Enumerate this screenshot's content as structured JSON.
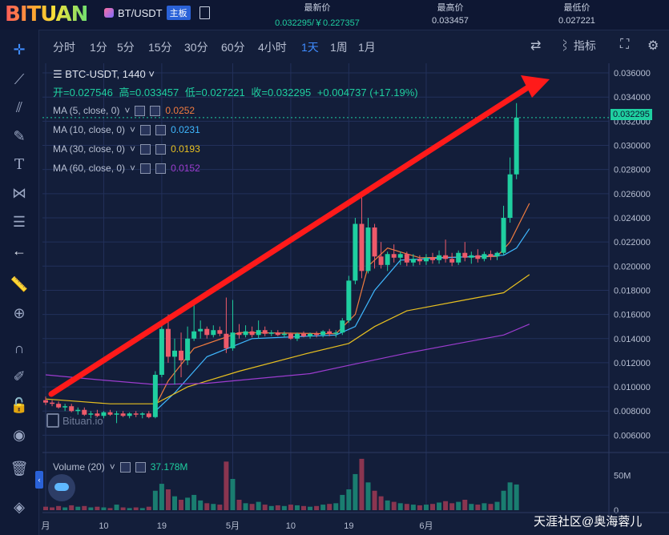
{
  "header": {
    "logo": "BITUAN",
    "pair": "BT/USDT",
    "board_badge": "主板",
    "stats": [
      {
        "label": "最新价",
        "value": "0.032295/￥0.227357",
        "color": "green"
      },
      {
        "label": "最高价",
        "value": "0.033457",
        "color": "plain"
      },
      {
        "label": "最低价",
        "value": "0.027221",
        "color": "plain"
      }
    ]
  },
  "toolbar": {
    "timeframes": [
      "分时",
      "1分",
      "5分",
      "15分",
      "30分",
      "60分",
      "4小时",
      "1天",
      "1周",
      "1月"
    ],
    "active_timeframe": "1天",
    "indicator_label": "指标"
  },
  "legend": {
    "symbol_line": "BTC-USDT, 1440",
    "open": "开=0.027546",
    "high": "高=0.033457",
    "low": "低=0.027221",
    "close": "收=0.032295",
    "change": "+0.004737 (+17.19%)",
    "ma": [
      {
        "label": "MA (5, close, 0)",
        "value": "0.0252",
        "color": "#f07b3f"
      },
      {
        "label": "MA (10, close, 0)",
        "value": "0.0231",
        "color": "#3fb8ff"
      },
      {
        "label": "MA (30, close, 0)",
        "value": "0.0193",
        "color": "#e8c020"
      },
      {
        "label": "MA (60, close, 0)",
        "value": "0.0152",
        "color": "#9c3ccf"
      }
    ],
    "volume_label": "Volume (20)",
    "volume_value": "37.178M",
    "last_price_tag": "0.032295"
  },
  "watermark": "Bituan.io",
  "footer_watermark": "天涯社区@奥海蓉儿",
  "colors": {
    "up": "#1fcfa0",
    "down": "#ee5a6a",
    "background": "#131e3a",
    "arrow": "#ff1a1a"
  },
  "chart_data": {
    "type": "candlestick",
    "y_axis_ticks": [
      "0.036000",
      "0.034000",
      "0.032000",
      "0.030000",
      "0.028000",
      "0.026000",
      "0.024000",
      "0.022000",
      "0.020000",
      "0.018000",
      "0.016000",
      "0.014000",
      "0.012000",
      "0.010000",
      "0.008000",
      "0.006000"
    ],
    "ylim": [
      0.0047,
      0.0368
    ],
    "x_tick_labels": [
      "月",
      "10",
      "19",
      "5月",
      "10",
      "19",
      "6月"
    ],
    "x_tick_positions": [
      0,
      9,
      18,
      29,
      38,
      47,
      59
    ],
    "volume_ticks": [
      "50M",
      "0"
    ],
    "volume_max": 75,
    "candles": [
      {
        "o": 0.0089,
        "h": 0.0092,
        "l": 0.0085,
        "c": 0.0087,
        "v": 5
      },
      {
        "o": 0.0087,
        "h": 0.0089,
        "l": 0.0084,
        "c": 0.0086,
        "v": 4
      },
      {
        "o": 0.0086,
        "h": 0.0088,
        "l": 0.0082,
        "c": 0.0083,
        "v": 6
      },
      {
        "o": 0.0083,
        "h": 0.0086,
        "l": 0.008,
        "c": 0.0084,
        "v": 4
      },
      {
        "o": 0.0084,
        "h": 0.0086,
        "l": 0.0079,
        "c": 0.008,
        "v": 7
      },
      {
        "o": 0.008,
        "h": 0.0083,
        "l": 0.0077,
        "c": 0.0081,
        "v": 5
      },
      {
        "o": 0.0081,
        "h": 0.0083,
        "l": 0.0076,
        "c": 0.0077,
        "v": 6
      },
      {
        "o": 0.0077,
        "h": 0.008,
        "l": 0.0074,
        "c": 0.0078,
        "v": 4
      },
      {
        "o": 0.0078,
        "h": 0.0081,
        "l": 0.0075,
        "c": 0.0076,
        "v": 5
      },
      {
        "o": 0.0076,
        "h": 0.008,
        "l": 0.0074,
        "c": 0.0079,
        "v": 4
      },
      {
        "o": 0.0079,
        "h": 0.0081,
        "l": 0.0076,
        "c": 0.0077,
        "v": 3
      },
      {
        "o": 0.0077,
        "h": 0.008,
        "l": 0.007,
        "c": 0.0078,
        "v": 8
      },
      {
        "o": 0.0078,
        "h": 0.008,
        "l": 0.0075,
        "c": 0.0076,
        "v": 4
      },
      {
        "o": 0.0076,
        "h": 0.0079,
        "l": 0.0074,
        "c": 0.0078,
        "v": 3
      },
      {
        "o": 0.0078,
        "h": 0.008,
        "l": 0.0075,
        "c": 0.0077,
        "v": 4
      },
      {
        "o": 0.0077,
        "h": 0.0079,
        "l": 0.0074,
        "c": 0.0078,
        "v": 3
      },
      {
        "o": 0.0078,
        "h": 0.008,
        "l": 0.0074,
        "c": 0.0075,
        "v": 5
      },
      {
        "o": 0.0075,
        "h": 0.0113,
        "l": 0.0074,
        "c": 0.011,
        "v": 28
      },
      {
        "o": 0.011,
        "h": 0.0152,
        "l": 0.0108,
        "c": 0.0148,
        "v": 38
      },
      {
        "o": 0.0148,
        "h": 0.016,
        "l": 0.012,
        "c": 0.0125,
        "v": 30
      },
      {
        "o": 0.0125,
        "h": 0.014,
        "l": 0.0102,
        "c": 0.013,
        "v": 20
      },
      {
        "o": 0.013,
        "h": 0.0145,
        "l": 0.0108,
        "c": 0.0122,
        "v": 15
      },
      {
        "o": 0.0122,
        "h": 0.015,
        "l": 0.0118,
        "c": 0.014,
        "v": 18
      },
      {
        "o": 0.014,
        "h": 0.0172,
        "l": 0.0138,
        "c": 0.0146,
        "v": 22
      },
      {
        "o": 0.0146,
        "h": 0.0155,
        "l": 0.014,
        "c": 0.0148,
        "v": 14
      },
      {
        "o": 0.0148,
        "h": 0.015,
        "l": 0.014,
        "c": 0.0143,
        "v": 10
      },
      {
        "o": 0.0143,
        "h": 0.0151,
        "l": 0.0141,
        "c": 0.0147,
        "v": 9
      },
      {
        "o": 0.0147,
        "h": 0.015,
        "l": 0.0142,
        "c": 0.0144,
        "v": 8
      },
      {
        "o": 0.0144,
        "h": 0.0174,
        "l": 0.0128,
        "c": 0.0132,
        "v": 70
      },
      {
        "o": 0.0132,
        "h": 0.0172,
        "l": 0.013,
        "c": 0.0145,
        "v": 45
      },
      {
        "o": 0.0145,
        "h": 0.0152,
        "l": 0.014,
        "c": 0.0143,
        "v": 15
      },
      {
        "o": 0.0143,
        "h": 0.0151,
        "l": 0.0141,
        "c": 0.0146,
        "v": 10
      },
      {
        "o": 0.0146,
        "h": 0.015,
        "l": 0.0141,
        "c": 0.0143,
        "v": 9
      },
      {
        "o": 0.0143,
        "h": 0.0155,
        "l": 0.014,
        "c": 0.0147,
        "v": 12
      },
      {
        "o": 0.0147,
        "h": 0.015,
        "l": 0.0142,
        "c": 0.0144,
        "v": 8
      },
      {
        "o": 0.0144,
        "h": 0.0147,
        "l": 0.0142,
        "c": 0.0145,
        "v": 6
      },
      {
        "o": 0.0145,
        "h": 0.0147,
        "l": 0.0142,
        "c": 0.0143,
        "v": 7
      },
      {
        "o": 0.0143,
        "h": 0.0146,
        "l": 0.0141,
        "c": 0.0144,
        "v": 6
      },
      {
        "o": 0.0144,
        "h": 0.0145,
        "l": 0.0139,
        "c": 0.014,
        "v": 8
      },
      {
        "o": 0.014,
        "h": 0.0145,
        "l": 0.0138,
        "c": 0.0144,
        "v": 7
      },
      {
        "o": 0.0144,
        "h": 0.0146,
        "l": 0.0141,
        "c": 0.0142,
        "v": 6
      },
      {
        "o": 0.0142,
        "h": 0.0145,
        "l": 0.014,
        "c": 0.0144,
        "v": 5
      },
      {
        "o": 0.0144,
        "h": 0.0146,
        "l": 0.0141,
        "c": 0.0143,
        "v": 6
      },
      {
        "o": 0.0143,
        "h": 0.0147,
        "l": 0.0141,
        "c": 0.0146,
        "v": 8
      },
      {
        "o": 0.0146,
        "h": 0.0148,
        "l": 0.0142,
        "c": 0.0144,
        "v": 9
      },
      {
        "o": 0.0144,
        "h": 0.0147,
        "l": 0.0141,
        "c": 0.0145,
        "v": 10
      },
      {
        "o": 0.0145,
        "h": 0.0157,
        "l": 0.0143,
        "c": 0.0155,
        "v": 22
      },
      {
        "o": 0.0155,
        "h": 0.0192,
        "l": 0.0153,
        "c": 0.0188,
        "v": 30
      },
      {
        "o": 0.0188,
        "h": 0.024,
        "l": 0.0185,
        "c": 0.0235,
        "v": 52
      },
      {
        "o": 0.0235,
        "h": 0.0262,
        "l": 0.019,
        "c": 0.0196,
        "v": 74
      },
      {
        "o": 0.0196,
        "h": 0.024,
        "l": 0.0194,
        "c": 0.0232,
        "v": 40
      },
      {
        "o": 0.0232,
        "h": 0.0235,
        "l": 0.0198,
        "c": 0.0208,
        "v": 28
      },
      {
        "o": 0.0208,
        "h": 0.022,
        "l": 0.0198,
        "c": 0.0201,
        "v": 20
      },
      {
        "o": 0.0201,
        "h": 0.0212,
        "l": 0.0196,
        "c": 0.021,
        "v": 14
      },
      {
        "o": 0.021,
        "h": 0.0218,
        "l": 0.0203,
        "c": 0.0207,
        "v": 12
      },
      {
        "o": 0.0207,
        "h": 0.0212,
        "l": 0.0201,
        "c": 0.021,
        "v": 10
      },
      {
        "o": 0.021,
        "h": 0.0212,
        "l": 0.02,
        "c": 0.0203,
        "v": 9
      },
      {
        "o": 0.0203,
        "h": 0.021,
        "l": 0.02,
        "c": 0.0206,
        "v": 8
      },
      {
        "o": 0.0206,
        "h": 0.0209,
        "l": 0.0201,
        "c": 0.0204,
        "v": 7
      },
      {
        "o": 0.0204,
        "h": 0.021,
        "l": 0.0201,
        "c": 0.0207,
        "v": 8
      },
      {
        "o": 0.0207,
        "h": 0.0211,
        "l": 0.0202,
        "c": 0.0205,
        "v": 9
      },
      {
        "o": 0.0205,
        "h": 0.0213,
        "l": 0.0202,
        "c": 0.0209,
        "v": 11
      },
      {
        "o": 0.0209,
        "h": 0.0222,
        "l": 0.0203,
        "c": 0.0206,
        "v": 13
      },
      {
        "o": 0.0206,
        "h": 0.0211,
        "l": 0.02,
        "c": 0.0203,
        "v": 10
      },
      {
        "o": 0.0203,
        "h": 0.0213,
        "l": 0.0201,
        "c": 0.0211,
        "v": 12
      },
      {
        "o": 0.0211,
        "h": 0.022,
        "l": 0.0204,
        "c": 0.0207,
        "v": 15
      },
      {
        "o": 0.0207,
        "h": 0.0212,
        "l": 0.0202,
        "c": 0.0209,
        "v": 9
      },
      {
        "o": 0.0209,
        "h": 0.0214,
        "l": 0.0203,
        "c": 0.0206,
        "v": 8
      },
      {
        "o": 0.0206,
        "h": 0.0212,
        "l": 0.0204,
        "c": 0.021,
        "v": 10
      },
      {
        "o": 0.021,
        "h": 0.0213,
        "l": 0.0205,
        "c": 0.0208,
        "v": 9
      },
      {
        "o": 0.0208,
        "h": 0.0212,
        "l": 0.0205,
        "c": 0.0211,
        "v": 12
      },
      {
        "o": 0.0211,
        "h": 0.025,
        "l": 0.0209,
        "c": 0.024,
        "v": 28
      },
      {
        "o": 0.024,
        "h": 0.029,
        "l": 0.0236,
        "c": 0.0276,
        "v": 40
      },
      {
        "o": 0.0276,
        "h": 0.0335,
        "l": 0.0272,
        "c": 0.0323,
        "v": 37
      }
    ],
    "ma_lines": [
      {
        "name": "MA5",
        "color": "#f07b3f",
        "points": [
          [
            17,
            0.0084
          ],
          [
            19,
            0.0105
          ],
          [
            23,
            0.0132
          ],
          [
            30,
            0.0145
          ],
          [
            45,
            0.0144
          ],
          [
            48,
            0.016
          ],
          [
            50,
            0.02
          ],
          [
            53,
            0.0215
          ],
          [
            58,
            0.0207
          ],
          [
            70,
            0.0208
          ],
          [
            72,
            0.022
          ],
          [
            75,
            0.0252
          ]
        ]
      },
      {
        "name": "MA10",
        "color": "#3fb8ff",
        "points": [
          [
            17,
            0.008
          ],
          [
            20,
            0.0095
          ],
          [
            25,
            0.0125
          ],
          [
            32,
            0.014
          ],
          [
            45,
            0.0143
          ],
          [
            48,
            0.015
          ],
          [
            51,
            0.018
          ],
          [
            55,
            0.0205
          ],
          [
            62,
            0.0207
          ],
          [
            71,
            0.0209
          ],
          [
            73,
            0.0215
          ],
          [
            75,
            0.0231
          ]
        ]
      },
      {
        "name": "MA30",
        "color": "#e8c020",
        "points": [
          [
            0,
            0.009
          ],
          [
            5,
            0.0088
          ],
          [
            10,
            0.0086
          ],
          [
            17,
            0.0086
          ],
          [
            22,
            0.01
          ],
          [
            30,
            0.0113
          ],
          [
            40,
            0.0127
          ],
          [
            47,
            0.0136
          ],
          [
            51,
            0.015
          ],
          [
            56,
            0.0163
          ],
          [
            65,
            0.0172
          ],
          [
            71,
            0.0178
          ],
          [
            75,
            0.0193
          ]
        ]
      },
      {
        "name": "MA60",
        "color": "#9c3ccf",
        "points": [
          [
            0,
            0.011
          ],
          [
            8,
            0.0106
          ],
          [
            17,
            0.0102
          ],
          [
            25,
            0.0103
          ],
          [
            33,
            0.0107
          ],
          [
            41,
            0.0111
          ],
          [
            48,
            0.0119
          ],
          [
            56,
            0.0128
          ],
          [
            64,
            0.0136
          ],
          [
            71,
            0.0143
          ],
          [
            75,
            0.0152
          ]
        ]
      }
    ]
  }
}
